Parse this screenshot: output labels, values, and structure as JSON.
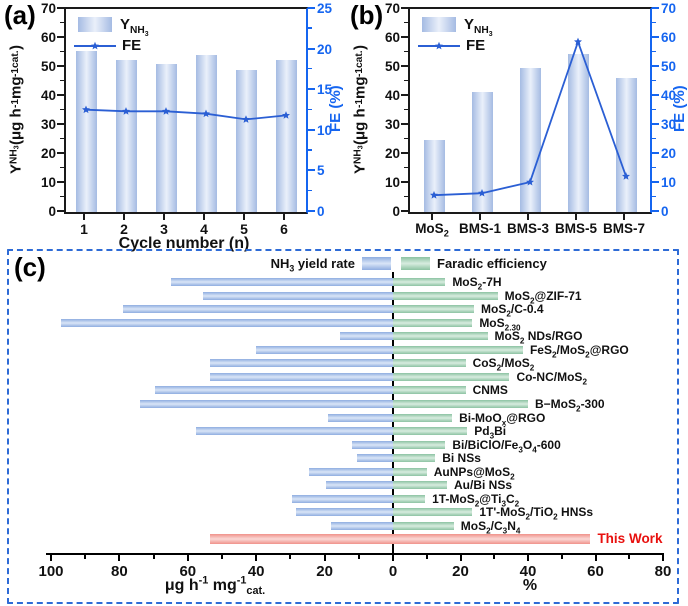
{
  "colors": {
    "axis_black": "#1a1a1a",
    "bar_blue_edge": "#a5bbe3",
    "bar_blue_center": "#eaf0fa",
    "hbar_blue_edge": "#8fade0",
    "hbar_blue_center": "#d9e5f7",
    "green_edge": "#8cc3a2",
    "green_center": "#d7ecdf",
    "red_edge": "#f0928b",
    "red_center": "#fad8d5",
    "line_blue": "#2b5fd4",
    "axis_blue": "#1565f0",
    "red_text": "#e8100e",
    "border_blue": "#2e6bd6"
  },
  "chart_data": [
    {
      "id": "a",
      "type": "bar+line-dual-axis",
      "panel_label": "(a)",
      "legend": [
        {
          "kind": "bar",
          "label": "Y_{NH_{3}}"
        },
        {
          "kind": "line-star",
          "label": "FE"
        }
      ],
      "categories": [
        "1",
        "2",
        "3",
        "4",
        "5",
        "6"
      ],
      "series": [
        {
          "name": "Y_{NH_{3}}",
          "type": "bar",
          "axis": "left",
          "values": [
            55.5,
            52.5,
            51,
            54,
            49,
            52.5
          ]
        },
        {
          "name": "FE",
          "type": "line",
          "axis": "right",
          "values": [
            12.6,
            12.4,
            12.4,
            12.1,
            11.4,
            11.9
          ]
        }
      ],
      "xlabel": "Cycle number (n)",
      "left_axis": {
        "label": "Y_{NH_{3}} (μg h^{-1} mg^{-1}_{cat.})",
        "min": 0,
        "max": 70,
        "ticks": [
          0,
          10,
          20,
          30,
          40,
          50,
          60,
          70
        ]
      },
      "right_axis": {
        "label": "FE (%)",
        "min": 0,
        "max": 25,
        "ticks": [
          0,
          5,
          10,
          15,
          20,
          25
        ]
      }
    },
    {
      "id": "b",
      "type": "bar+line-dual-axis",
      "panel_label": "(b)",
      "legend": [
        {
          "kind": "bar",
          "label": "Y_{NH_{3}}"
        },
        {
          "kind": "line-star",
          "label": "FE"
        }
      ],
      "categories": [
        "MoS_{2}",
        "BMS-1",
        "BMS-3",
        "BMS-5",
        "BMS-7"
      ],
      "series": [
        {
          "name": "Y_{NH_{3}}",
          "type": "bar",
          "axis": "left",
          "values": [
            25,
            41.3,
            49.5,
            54.5,
            46.3
          ]
        },
        {
          "name": "FE",
          "type": "line",
          "axis": "right",
          "values": [
            5.8,
            6.5,
            10.3,
            58.7,
            12.3
          ]
        }
      ],
      "xlabel": "",
      "left_axis": {
        "label": "Y_{NH_{3}} (μg h^{-1} mg^{-1}_{cat.})",
        "min": 0,
        "max": 70,
        "ticks": [
          0,
          10,
          20,
          30,
          40,
          50,
          60,
          70
        ]
      },
      "right_axis": {
        "label": "FE (%)",
        "min": 0,
        "max": 70,
        "ticks": [
          0,
          10,
          20,
          30,
          40,
          50,
          60,
          70
        ]
      }
    },
    {
      "id": "c",
      "type": "diverging-bar",
      "panel_label": "(c)",
      "legend": [
        {
          "label": "NH_{3} yield rate",
          "color": "blue"
        },
        {
          "label": "Faradic efficiency",
          "color": "green"
        }
      ],
      "rows": [
        {
          "label": "MoS_{2}-7H",
          "yield": 65,
          "fe": 15.5,
          "highlight": false
        },
        {
          "label": "MoS_{2}@ZIF-71",
          "yield": 55.5,
          "fe": 31,
          "highlight": false
        },
        {
          "label": "MoS_{2}/C-0.4",
          "yield": 79,
          "fe": 24,
          "highlight": false
        },
        {
          "label": "MoS_{2.30}",
          "yield": 97,
          "fe": 23.5,
          "highlight": false
        },
        {
          "label": "MoS_{2} NDs/RGO",
          "yield": 15.5,
          "fe": 28,
          "highlight": false
        },
        {
          "label": "FeS_{2}/MoS_{2}@RGO",
          "yield": 40,
          "fe": 38.5,
          "highlight": false
        },
        {
          "label": "CoS_{2}/MoS_{2}",
          "yield": 53.5,
          "fe": 21.5,
          "highlight": false
        },
        {
          "label": "Co-NC/MoS_{2}",
          "yield": 53.5,
          "fe": 34.5,
          "highlight": false
        },
        {
          "label": "CNMS",
          "yield": 69.5,
          "fe": 21.5,
          "highlight": false
        },
        {
          "label": "B−MoS_{2}-300",
          "yield": 74,
          "fe": 40,
          "highlight": false
        },
        {
          "label": "Bi-MoO_{x}@RGO",
          "yield": 19,
          "fe": 17.5,
          "highlight": false
        },
        {
          "label": "Pd_{3}Bi",
          "yield": 57.5,
          "fe": 22,
          "highlight": false
        },
        {
          "label": "Bi/BiClO/Fe_{3}O_{4}-600",
          "yield": 12,
          "fe": 15.5,
          "highlight": false
        },
        {
          "label": "Bi NSs",
          "yield": 10.5,
          "fe": 12.5,
          "highlight": false
        },
        {
          "label": "AuNPs@MoS_{2}",
          "yield": 24.5,
          "fe": 10,
          "highlight": false
        },
        {
          "label": "Au/Bi NSs",
          "yield": 19.5,
          "fe": 16,
          "highlight": false
        },
        {
          "label": "1T-MoS_{2}@Ti_{3}C_{2}",
          "yield": 29.5,
          "fe": 9.5,
          "highlight": false
        },
        {
          "label": "1T'-MoS_{2}/TiO_{2} HNSs",
          "yield": 28.5,
          "fe": 23.5,
          "highlight": false
        },
        {
          "label": "MoS_{2}/C_{3}N_{4}",
          "yield": 18,
          "fe": 18,
          "highlight": false
        },
        {
          "label": "This Work",
          "yield": 53.5,
          "fe": 58.5,
          "highlight": true
        }
      ],
      "left_axis": {
        "label": "μg h^{-1} mg^{-1}_{cat.}",
        "max": 100,
        "ticks": [
          100,
          80,
          60,
          40,
          20,
          0
        ]
      },
      "right_axis": {
        "label": "%",
        "max": 80,
        "ticks": [
          0,
          20,
          40,
          60,
          80
        ]
      }
    }
  ]
}
